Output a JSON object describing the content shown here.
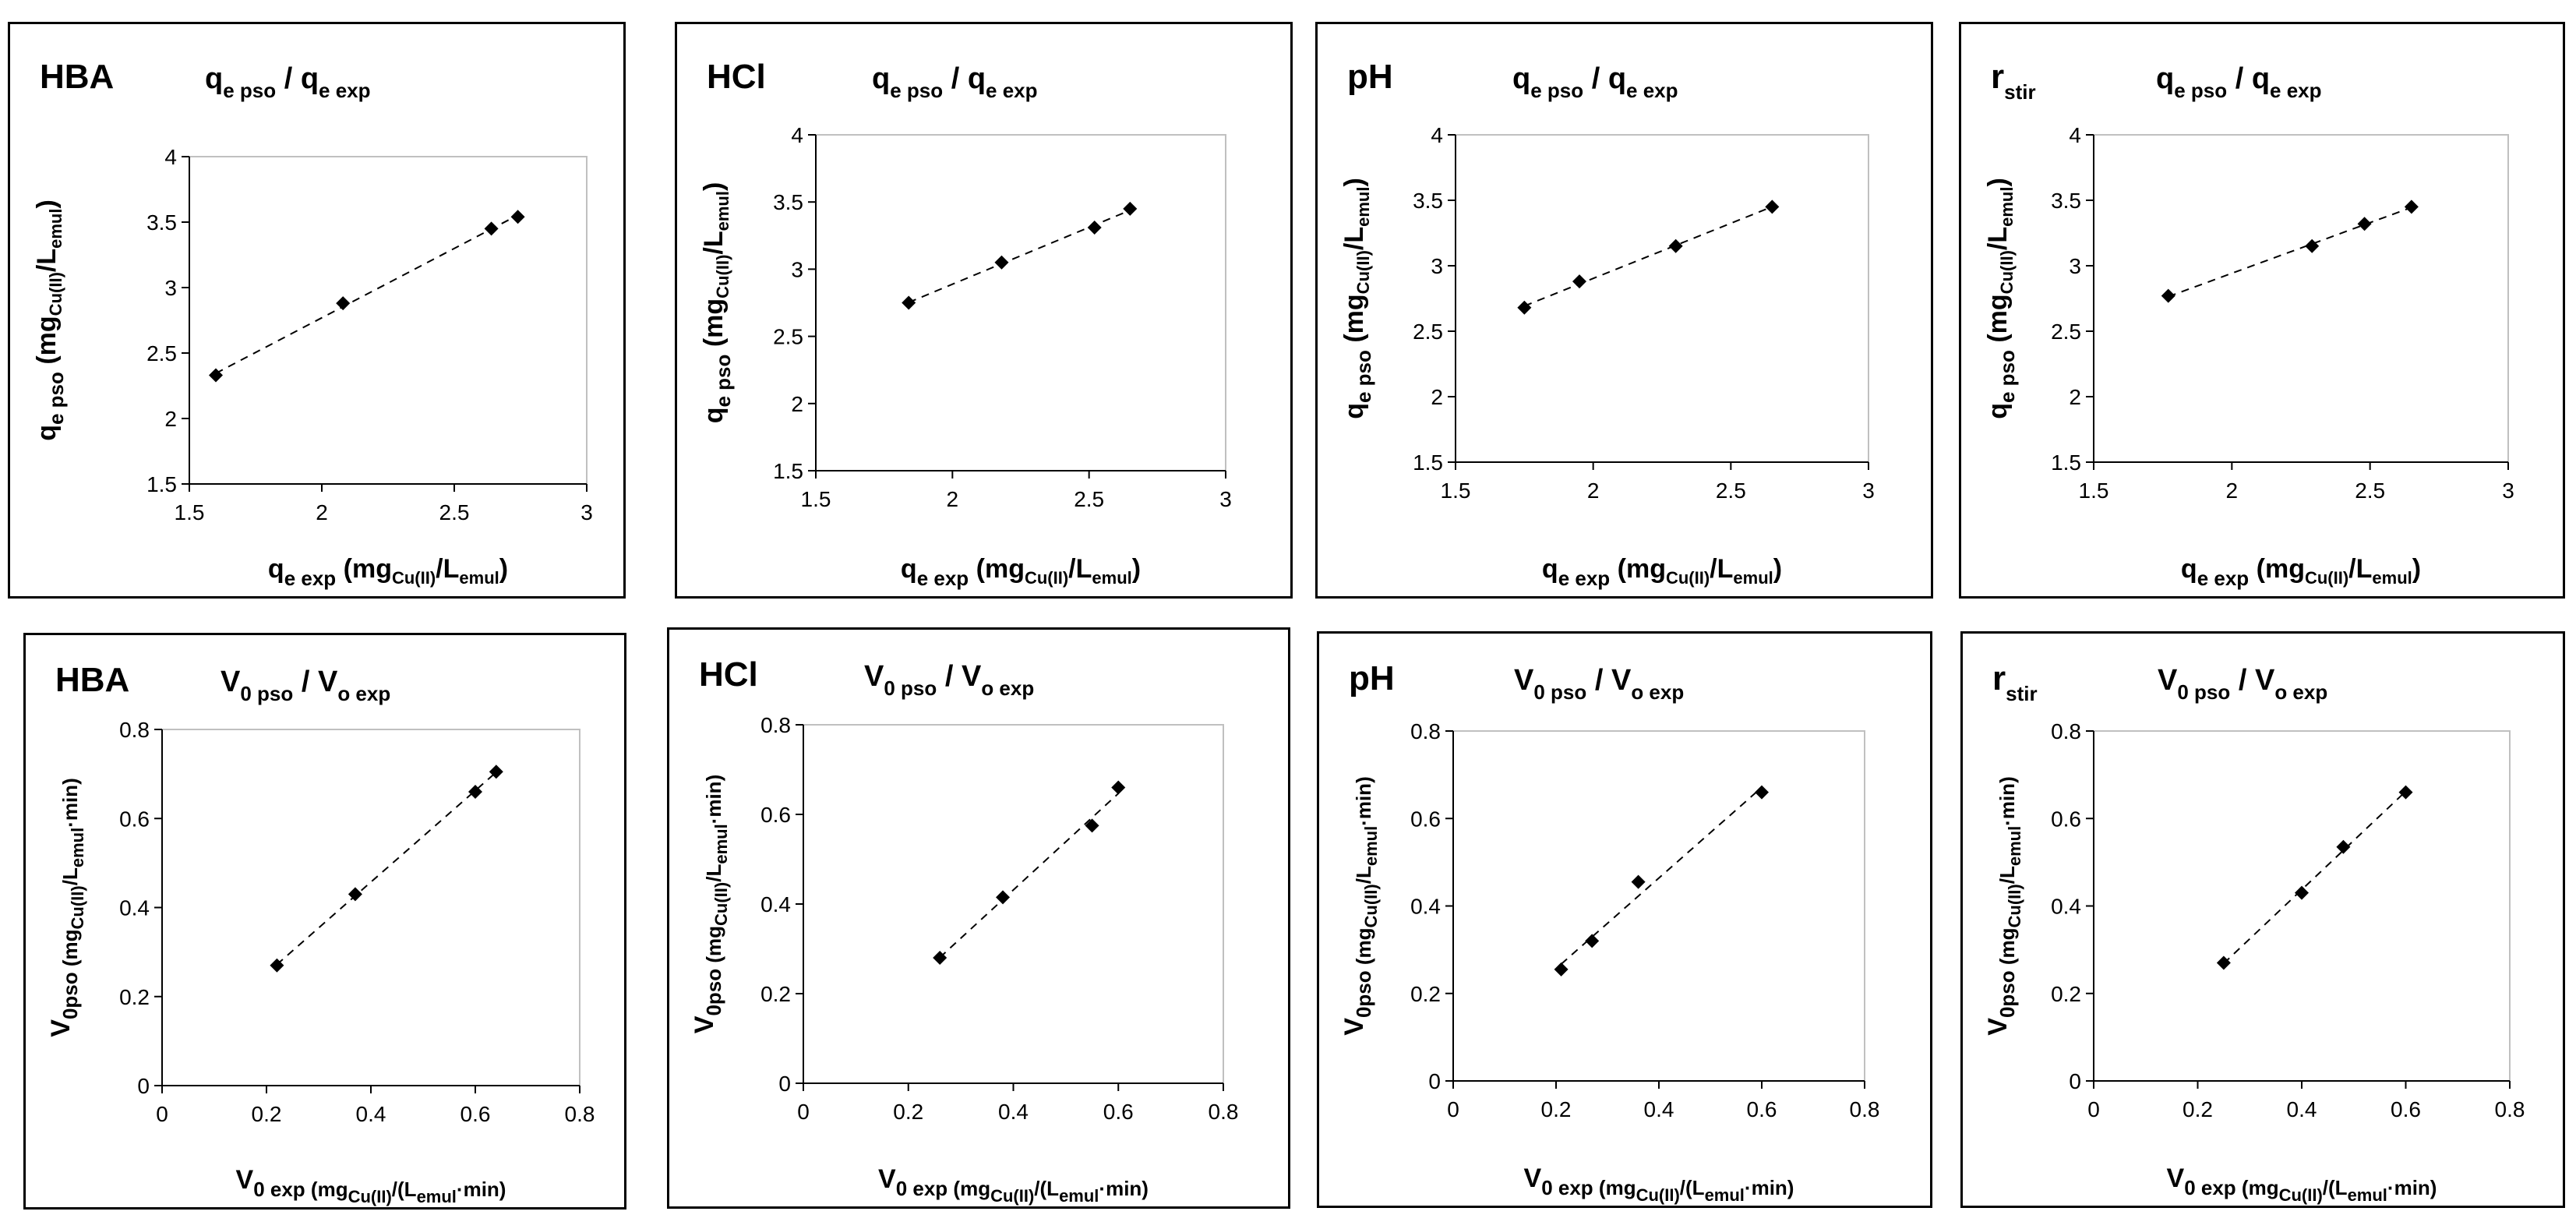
{
  "colors": {
    "marker": "#000000",
    "axis": "#000000",
    "frame": "#c0c0c0",
    "background": "#ffffff"
  },
  "chart_data": [
    {
      "type": "scatter",
      "row": "qe",
      "label": "HBA",
      "title_parts": [
        "q",
        "e pso",
        "/ q",
        "e exp"
      ],
      "x": [
        1.6,
        2.08,
        2.64,
        2.74
      ],
      "y": [
        2.33,
        2.88,
        3.45,
        3.54
      ],
      "xlim": [
        1.5,
        3
      ],
      "ylim": [
        1.5,
        4
      ],
      "xticks": [
        "1.5",
        "2",
        "2.5",
        "3"
      ],
      "yticks": [
        "1.5",
        "2",
        "2.5",
        "3",
        "3.5",
        "4"
      ],
      "xlabel_parts": [
        "q",
        "e exp",
        "(mg",
        "Cu(II)",
        "/L",
        "emul",
        ")"
      ],
      "ylabel_parts": [
        "q",
        "e pso",
        "(mg",
        "Cu(II)",
        "/L",
        "emul",
        ")"
      ],
      "trendline": "linear dashed"
    },
    {
      "type": "scatter",
      "row": "qe",
      "label": "HCl",
      "title_parts": [
        "q",
        "e pso",
        "/ q",
        "e exp"
      ],
      "x": [
        1.84,
        2.18,
        2.52,
        2.65
      ],
      "y": [
        2.75,
        3.05,
        3.31,
        3.45
      ],
      "xlim": [
        1.5,
        3
      ],
      "ylim": [
        1.5,
        4
      ],
      "xticks": [
        "1.5",
        "2",
        "2.5",
        "3"
      ],
      "yticks": [
        "1.5",
        "2",
        "2.5",
        "3",
        "3.5",
        "4"
      ],
      "xlabel_parts": [
        "q",
        "e exp",
        "(mg",
        "Cu(II)",
        "/L",
        "emul",
        ")"
      ],
      "ylabel_parts": [
        "q",
        "e pso",
        "(mg",
        "Cu(II)",
        "/L",
        "emul",
        ")"
      ],
      "trendline": "linear dashed"
    },
    {
      "type": "scatter",
      "row": "qe",
      "label": "pH",
      "title_parts": [
        "q",
        "e pso",
        "/ q",
        "e exp"
      ],
      "x": [
        1.75,
        1.95,
        2.3,
        2.65
      ],
      "y": [
        2.68,
        2.88,
        3.15,
        3.45
      ],
      "xlim": [
        1.5,
        3
      ],
      "ylim": [
        1.5,
        4
      ],
      "xticks": [
        "1.5",
        "2",
        "2.5",
        "3"
      ],
      "yticks": [
        "1.5",
        "2",
        "2.5",
        "3",
        "3.5",
        "4"
      ],
      "xlabel_parts": [
        "q",
        "e exp",
        "(mg",
        "Cu(II)",
        "/L",
        "emul",
        ")"
      ],
      "ylabel_parts": [
        "q",
        "e pso",
        "(mg",
        "Cu(II)",
        "/L",
        "emul",
        ")"
      ],
      "trendline": "linear dashed"
    },
    {
      "type": "scatter",
      "row": "qe",
      "label": "r",
      "label_sub": "stir",
      "title_parts": [
        "q",
        "e pso",
        "/ q",
        "e exp"
      ],
      "x": [
        1.77,
        2.29,
        2.48,
        2.65
      ],
      "y": [
        2.77,
        3.15,
        3.32,
        3.45
      ],
      "xlim": [
        1.5,
        3
      ],
      "ylim": [
        1.5,
        4
      ],
      "xticks": [
        "1.5",
        "2",
        "2.5",
        "3"
      ],
      "yticks": [
        "1.5",
        "2",
        "2.5",
        "3",
        "3.5",
        "4"
      ],
      "xlabel_parts": [
        "q",
        "e exp",
        "(mg",
        "Cu(II)",
        "/L",
        "emul",
        ")"
      ],
      "ylabel_parts": [
        "q",
        "e pso",
        "(mg",
        "Cu(II)",
        "/L",
        "emul",
        ")"
      ],
      "trendline": "linear dashed"
    },
    {
      "type": "scatter",
      "row": "v0",
      "label": "HBA",
      "title_parts": [
        "V",
        "0 pso",
        "/ V",
        "o exp"
      ],
      "x": [
        0.22,
        0.37,
        0.6,
        0.64
      ],
      "y": [
        0.27,
        0.43,
        0.66,
        0.705
      ],
      "xlim": [
        0,
        0.8
      ],
      "ylim": [
        0,
        0.8
      ],
      "xticks": [
        "0",
        "0.2",
        "0.4",
        "0.6",
        "0.8"
      ],
      "yticks": [
        "0",
        "0.2",
        "0.4",
        "0.6",
        "0.8"
      ],
      "xlabel_parts": [
        "V",
        "0 exp",
        "(mg",
        "Cu(II)",
        "/(L",
        "emul",
        "·min)"
      ],
      "ylabel_parts": [
        "V",
        "0pso",
        "(mg",
        "Cu(II)",
        "/L",
        "emul",
        "·min)"
      ],
      "trendline": "linear dashed"
    },
    {
      "type": "scatter",
      "row": "v0",
      "label": "HCl",
      "title_parts": [
        "V",
        "0 pso",
        "/ V",
        "o exp"
      ],
      "x": [
        0.26,
        0.38,
        0.55,
        0.6
      ],
      "y": [
        0.28,
        0.415,
        0.575,
        0.66
      ],
      "xlim": [
        0,
        0.8
      ],
      "ylim": [
        0,
        0.8
      ],
      "xticks": [
        "0",
        "0.2",
        "0.4",
        "0.6",
        "0.8"
      ],
      "yticks": [
        "0",
        "0.2",
        "0.4",
        "0.6",
        "0.8"
      ],
      "xlabel_parts": [
        "V",
        "0 exp",
        "(mg",
        "Cu(II)",
        "/(L",
        "emul",
        "·min)"
      ],
      "ylabel_parts": [
        "V",
        "0pso",
        "(mg",
        "Cu(II)",
        "/L",
        "emul",
        "·min)"
      ],
      "trendline": "linear dashed"
    },
    {
      "type": "scatter",
      "row": "v0",
      "label": "pH",
      "title_parts": [
        "V",
        "0 pso",
        "/ V",
        "o exp"
      ],
      "x": [
        0.21,
        0.27,
        0.36,
        0.6
      ],
      "y": [
        0.255,
        0.32,
        0.455,
        0.66
      ],
      "xlim": [
        0,
        0.8
      ],
      "ylim": [
        0,
        0.8
      ],
      "xticks": [
        "0",
        "0.2",
        "0.4",
        "0.6",
        "0.8"
      ],
      "yticks": [
        "0",
        "0.2",
        "0.4",
        "0.6",
        "0.8"
      ],
      "xlabel_parts": [
        "V",
        "0 exp",
        "(mg",
        "Cu(II)",
        "/(L",
        "emul",
        "·min)"
      ],
      "ylabel_parts": [
        "V",
        "0pso",
        "(mg",
        "Cu(II)",
        "/L",
        "emul",
        "·min)"
      ],
      "trendline": "linear dashed"
    },
    {
      "type": "scatter",
      "row": "v0",
      "label": "r",
      "label_sub": "stir",
      "title_parts": [
        "V",
        "0 pso",
        "/ V",
        "o exp"
      ],
      "x": [
        0.25,
        0.4,
        0.48,
        0.6
      ],
      "y": [
        0.27,
        0.43,
        0.535,
        0.66
      ],
      "xlim": [
        0,
        0.8
      ],
      "ylim": [
        0,
        0.8
      ],
      "xticks": [
        "0",
        "0.2",
        "0.4",
        "0.6",
        "0.8"
      ],
      "yticks": [
        "0",
        "0.2",
        "0.4",
        "0.6",
        "0.8"
      ],
      "xlabel_parts": [
        "V",
        "0 exp",
        "(mg",
        "Cu(II)",
        "/(L",
        "emul",
        "·min)"
      ],
      "ylabel_parts": [
        "V",
        "0pso",
        "(mg",
        "Cu(II)",
        "/L",
        "emul",
        "·min)"
      ],
      "trendline": "linear dashed"
    }
  ]
}
